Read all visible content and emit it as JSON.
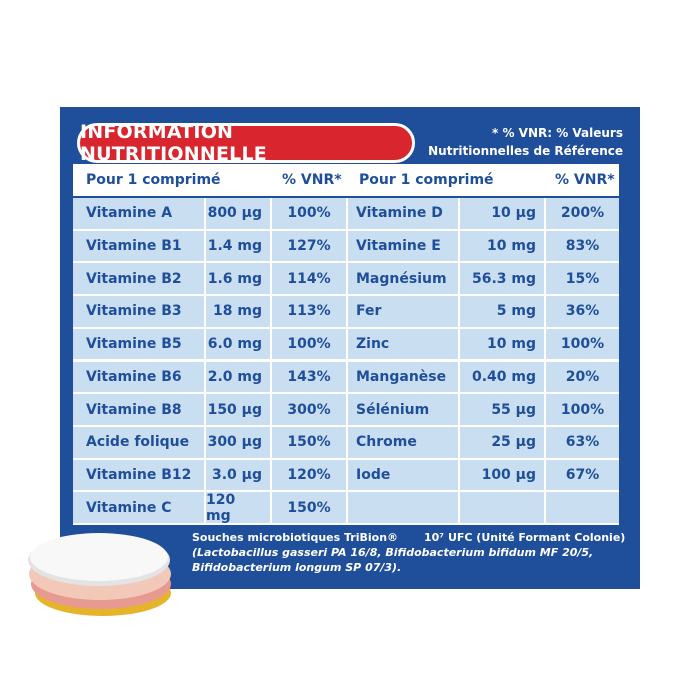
{
  "banner": "INFORMATION NUTRITIONNELLE",
  "note_line1": "* % VNR: % Valeurs",
  "note_line2": "Nutritionnelles de Référence",
  "header": {
    "left_label": "Pour 1 comprimé",
    "left_pct": "% VNR*",
    "right_label": "Pour 1 comprimé",
    "right_pct": "% VNR*"
  },
  "left_rows": [
    {
      "name": "Vitamine A",
      "amount": "800 µg",
      "pct": "100%"
    },
    {
      "name": "Vitamine B1",
      "amount": "1.4 mg",
      "pct": "127%"
    },
    {
      "name": "Vitamine B2",
      "amount": "1.6 mg",
      "pct": "114%"
    },
    {
      "name": "Vitamine B3",
      "amount": "18 mg",
      "pct": "113%"
    },
    {
      "name": "Vitamine B5",
      "amount": "6.0 mg",
      "pct": "100%"
    },
    {
      "name": "Vitamine B6",
      "amount": "2.0 mg",
      "pct": "143%"
    },
    {
      "name": "Vitamine B8",
      "amount": "150 µg",
      "pct": "300%"
    },
    {
      "name": "Acide folique",
      "amount": "300 µg",
      "pct": "150%"
    },
    {
      "name": "Vitamine B12",
      "amount": "3.0 µg",
      "pct": "120%"
    },
    {
      "name": "Vitamine C",
      "amount": "120 mg",
      "pct": "150%"
    }
  ],
  "right_rows": [
    {
      "name": "Vitamine D",
      "amount": "10 µg",
      "pct": "200%"
    },
    {
      "name": "Vitamine E",
      "amount": "10 mg",
      "pct": "83%"
    },
    {
      "name": "Magnésium",
      "amount": "56.3 mg",
      "pct": "15%"
    },
    {
      "name": "Fer",
      "amount": "5 mg",
      "pct": "36%"
    },
    {
      "name": "Zinc",
      "amount": "10 mg",
      "pct": "100%"
    },
    {
      "name": "Manganèse",
      "amount": "0.40 mg",
      "pct": "20%"
    },
    {
      "name": "Sélénium",
      "amount": "55 µg",
      "pct": "100%"
    },
    {
      "name": "Chrome",
      "amount": "25 µg",
      "pct": "63%"
    },
    {
      "name": "Iode",
      "amount": "100 µg",
      "pct": "67%"
    }
  ],
  "footnote": {
    "line1": "Souches microbiotiques TriBion®",
    "ufc": "10⁷ UFC (Unité Formant Colonie)",
    "line2": "(Lactobacillus gasseri PA 16/8, Bifidobacterium bifidum MF 20/5,",
    "line3": "Bifidobacterium longum SP 07/3)."
  },
  "colors": {
    "panel": "#1f4f9a",
    "banner": "#d8252e",
    "cell": "#c9def1",
    "text": "#1f4f9a"
  },
  "icons": [
    "tablet-image"
  ]
}
